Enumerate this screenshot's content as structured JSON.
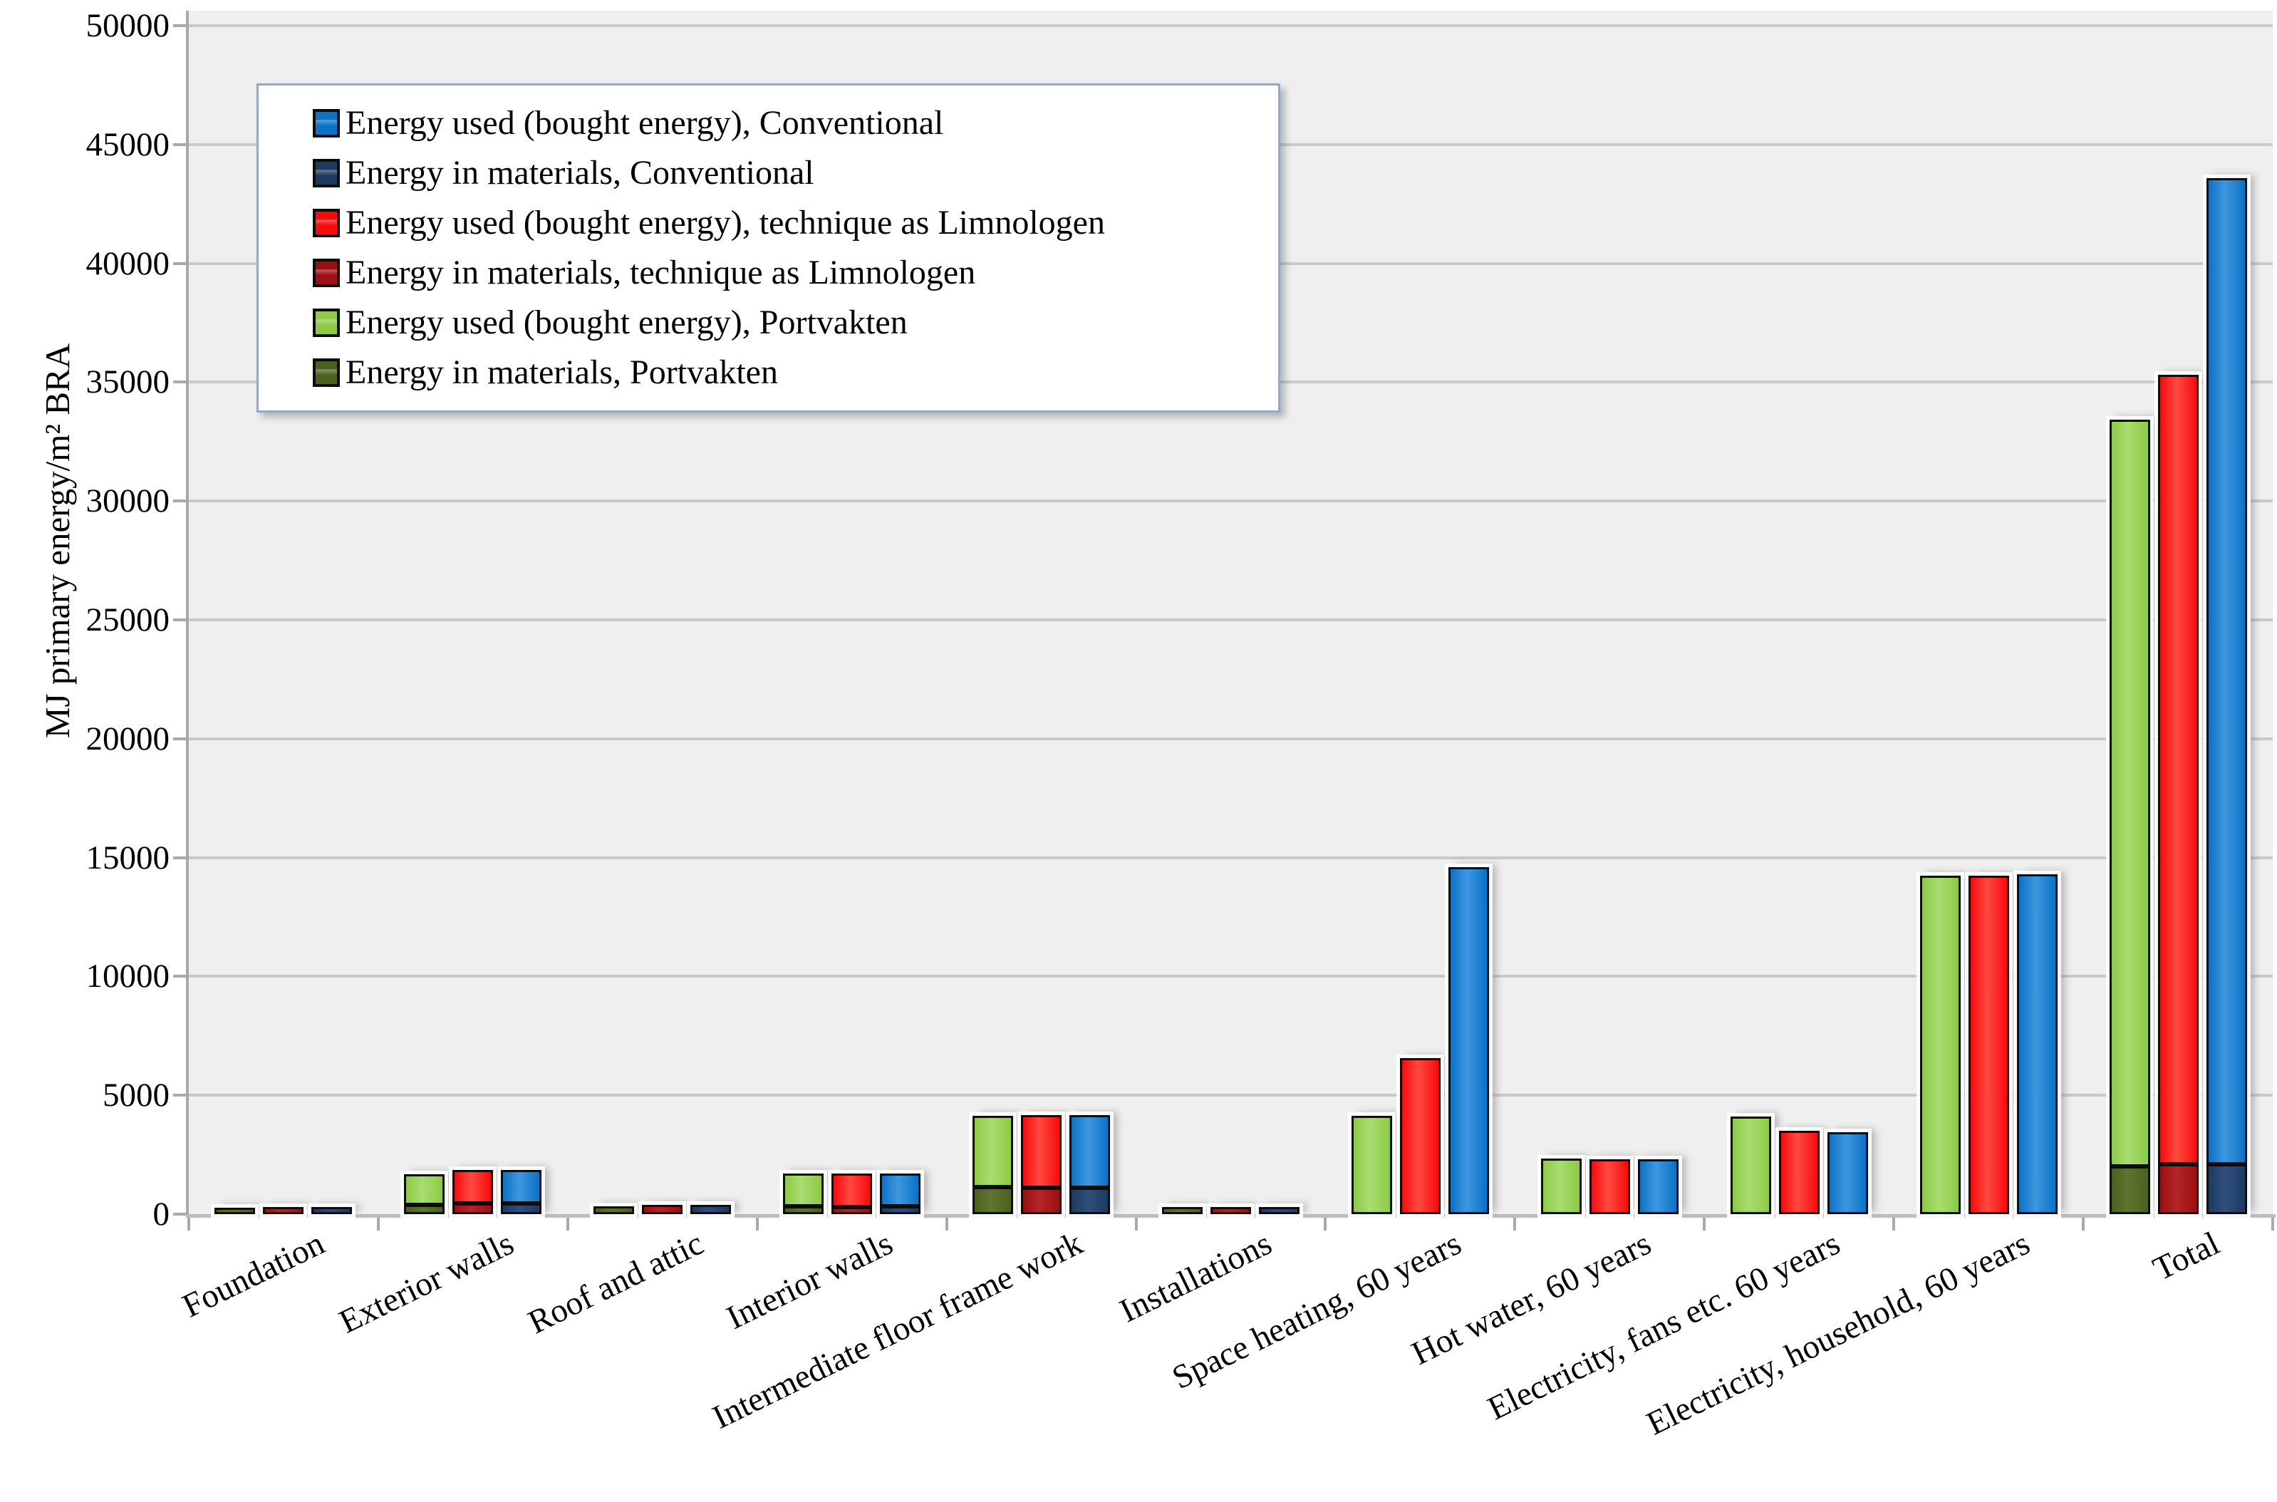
{
  "chart_data": {
    "type": "bar",
    "stacked": true,
    "title": "",
    "xlabel": "",
    "ylabel": "MJ primary energy/m² BRA",
    "ylim": [
      0,
      50000
    ],
    "ytick_step": 5000,
    "yticks": [
      "0",
      "5000",
      "10000",
      "15000",
      "20000",
      "25000",
      "30000",
      "35000",
      "40000",
      "45000",
      "50000"
    ],
    "grid": "horizontal",
    "legend_position": "top-left-inside",
    "categories": [
      "Foundation",
      "Exterior walls",
      "Roof and attic",
      "Interior walls",
      "Intermediate floor frame work",
      "Installations",
      "Space heating, 60 years",
      "Hot water, 60 years",
      "Electricity, fans etc. 60 years",
      "Electricity, household, 60 years",
      "Total"
    ],
    "legend": [
      {
        "label": "Energy used (bought energy), Conventional",
        "color": "#0b72c5"
      },
      {
        "label": "Energy in materials, Conventional",
        "color": "#1e3a5f"
      },
      {
        "label": "Energy used (bought energy), technique as Limnologen",
        "color": "#f70a0c"
      },
      {
        "label": "Energy in materials, technique as Limnologen",
        "color": "#9c0f12"
      },
      {
        "label": "Energy used (bought energy), Portvakten",
        "color": "#8dcb46"
      },
      {
        "label": "Energy in materials, Portvakten",
        "color": "#4d611e"
      }
    ],
    "variants": [
      {
        "name": "Portvakten",
        "used_label": "Energy used (bought energy), Portvakten",
        "materials_label": "Energy in materials, Portvakten",
        "used_color": "#8dcb46",
        "used_color_light": "#a9dc70",
        "materials_color": "#4d611e",
        "materials_color_light": "#5e7430",
        "used": [
          0,
          1300,
          0,
          1370,
          3000,
          0,
          4150,
          2350,
          4100,
          14250,
          31400
        ],
        "materials": [
          280,
          400,
          330,
          330,
          1150,
          300,
          0,
          0,
          0,
          0,
          2000
        ]
      },
      {
        "name": "technique as Limnologen",
        "used_label": "Energy used (bought energy), technique as Limnologen",
        "materials_label": "Energy in materials, technique as Limnologen",
        "used_color": "#f70a0c",
        "used_color_light": "#ff4a42",
        "materials_color": "#9c0f12",
        "materials_color_light": "#b52527",
        "used": [
          0,
          1400,
          0,
          1400,
          3050,
          0,
          6550,
          2300,
          3500,
          14250,
          33200
        ],
        "materials": [
          300,
          450,
          380,
          300,
          1100,
          300,
          0,
          0,
          0,
          0,
          2100
        ]
      },
      {
        "name": "Conventional",
        "used_label": "Energy used (bought energy), Conventional",
        "materials_label": "Energy in materials, Conventional",
        "used_color": "#0b72c5",
        "used_color_light": "#3f97e0",
        "materials_color": "#1e3a5f",
        "materials_color_light": "#2f4f7c",
        "used": [
          0,
          1400,
          0,
          1370,
          3050,
          0,
          14600,
          2300,
          3450,
          14300,
          41500
        ],
        "materials": [
          300,
          450,
          380,
          330,
          1100,
          300,
          0,
          0,
          0,
          0,
          2100
        ]
      }
    ]
  }
}
